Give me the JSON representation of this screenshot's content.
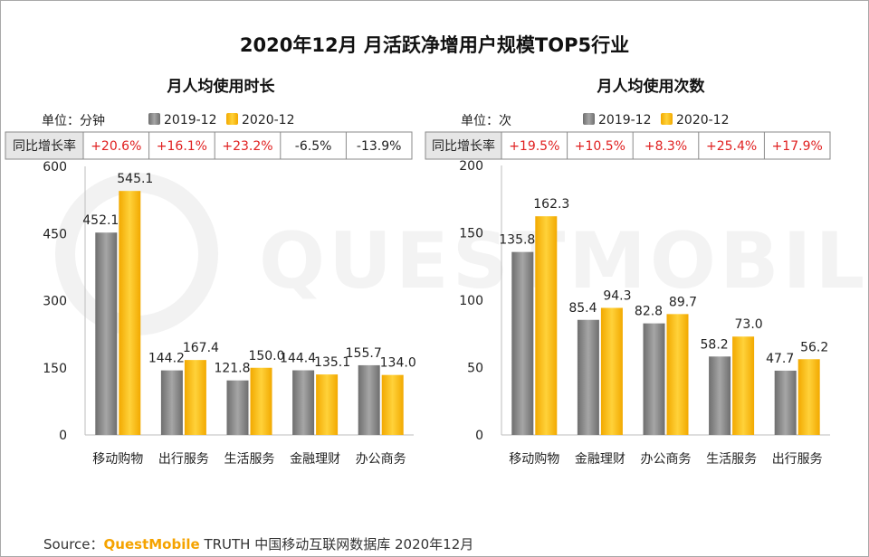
{
  "title": "2020年12月 月活跃净增用户规模TOP5行业",
  "legend": {
    "series1": "2019-12",
    "series2": "2020-12"
  },
  "yoy_label": "同比增长率",
  "chart_data": [
    {
      "type": "bar",
      "title": "月人均使用时长",
      "unit": "单位：分钟",
      "categories": [
        "移动购物",
        "出行服务",
        "生活服务",
        "金融理财",
        "办公商务"
      ],
      "series": [
        {
          "name": "2019-12",
          "color": "#8c8c8c",
          "values": [
            452.1,
            144.2,
            121.8,
            144.4,
            155.7
          ]
        },
        {
          "name": "2020-12",
          "color": "#ffc000",
          "values": [
            545.1,
            167.4,
            150.0,
            135.1,
            134.0
          ]
        }
      ],
      "yoy": [
        "+20.6%",
        "+16.1%",
        "+23.2%",
        "-6.5%",
        "-13.9%"
      ],
      "yoy_colors": [
        "#e02020",
        "#e02020",
        "#e02020",
        "#222222",
        "#222222"
      ],
      "yticks": [
        "0",
        "150",
        "300",
        "450",
        "600"
      ],
      "ylim": [
        0,
        600
      ]
    },
    {
      "type": "bar",
      "title": "月人均使用次数",
      "unit": "单位：次",
      "categories": [
        "移动购物",
        "金融理财",
        "办公商务",
        "生活服务",
        "出行服务"
      ],
      "series": [
        {
          "name": "2019-12",
          "color": "#8c8c8c",
          "values": [
            135.8,
            85.4,
            82.8,
            58.2,
            47.7
          ]
        },
        {
          "name": "2020-12",
          "color": "#ffc000",
          "values": [
            162.3,
            94.3,
            89.7,
            73.0,
            56.2
          ]
        }
      ],
      "yoy": [
        "+19.5%",
        "+10.5%",
        "+8.3%",
        "+25.4%",
        "+17.9%"
      ],
      "yoy_colors": [
        "#e02020",
        "#e02020",
        "#e02020",
        "#e02020",
        "#e02020"
      ],
      "yticks": [
        "0",
        "50",
        "100",
        "150",
        "200"
      ],
      "ylim": [
        0,
        200
      ]
    }
  ],
  "watermark": "QUESTMOBILE",
  "source": {
    "prefix": "Source：",
    "brand": "QuestMobile",
    "rest": " TRUTH 中国移动互联网数据库 2020年12月"
  }
}
